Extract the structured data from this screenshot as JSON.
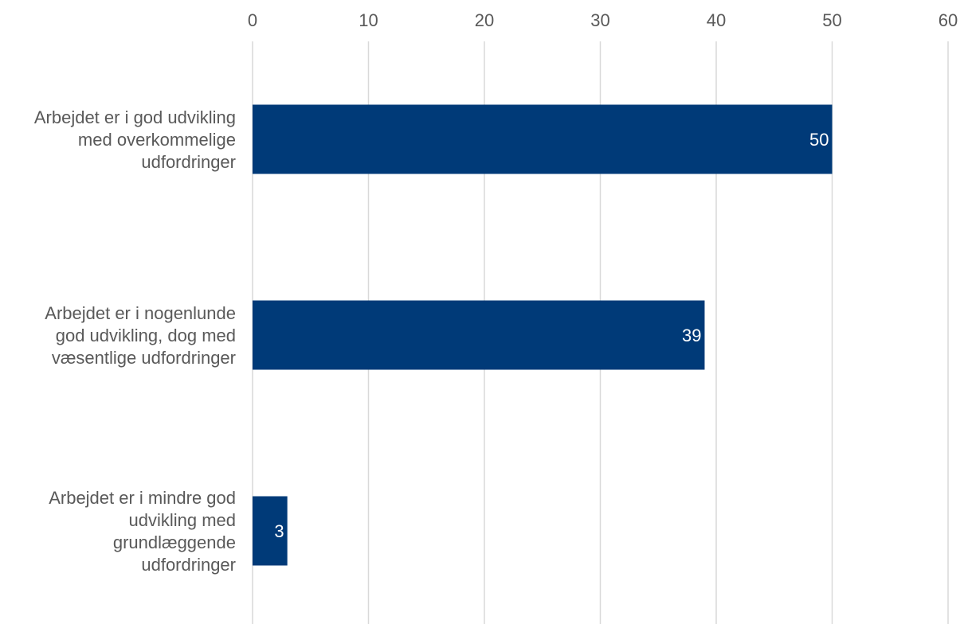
{
  "chart_data": {
    "type": "bar",
    "orientation": "horizontal",
    "categories": [
      [
        "Arbejdet er i god udvikling",
        "med overkommelige",
        "udfordringer"
      ],
      [
        "Arbejdet er i nogenlunde",
        "god udvikling, dog med",
        "væsentlige udfordringer"
      ],
      [
        "Arbejdet er i mindre god",
        "udvikling med",
        "grundlæggende",
        "udfordringer"
      ]
    ],
    "values": [
      50,
      39,
      3
    ],
    "data_labels": [
      "50",
      "39",
      "3"
    ],
    "xlim": [
      0,
      60
    ],
    "ticks": [
      0,
      10,
      20,
      30,
      40,
      50,
      60
    ],
    "tick_labels": [
      "0",
      "10",
      "20",
      "30",
      "40",
      "50",
      "60"
    ],
    "x_axis_position": "top",
    "grid": true,
    "bar_color": "#003a78",
    "grid_color": "#d9d9d9",
    "text_color": "#595959",
    "data_label_color": "#ffffff"
  }
}
